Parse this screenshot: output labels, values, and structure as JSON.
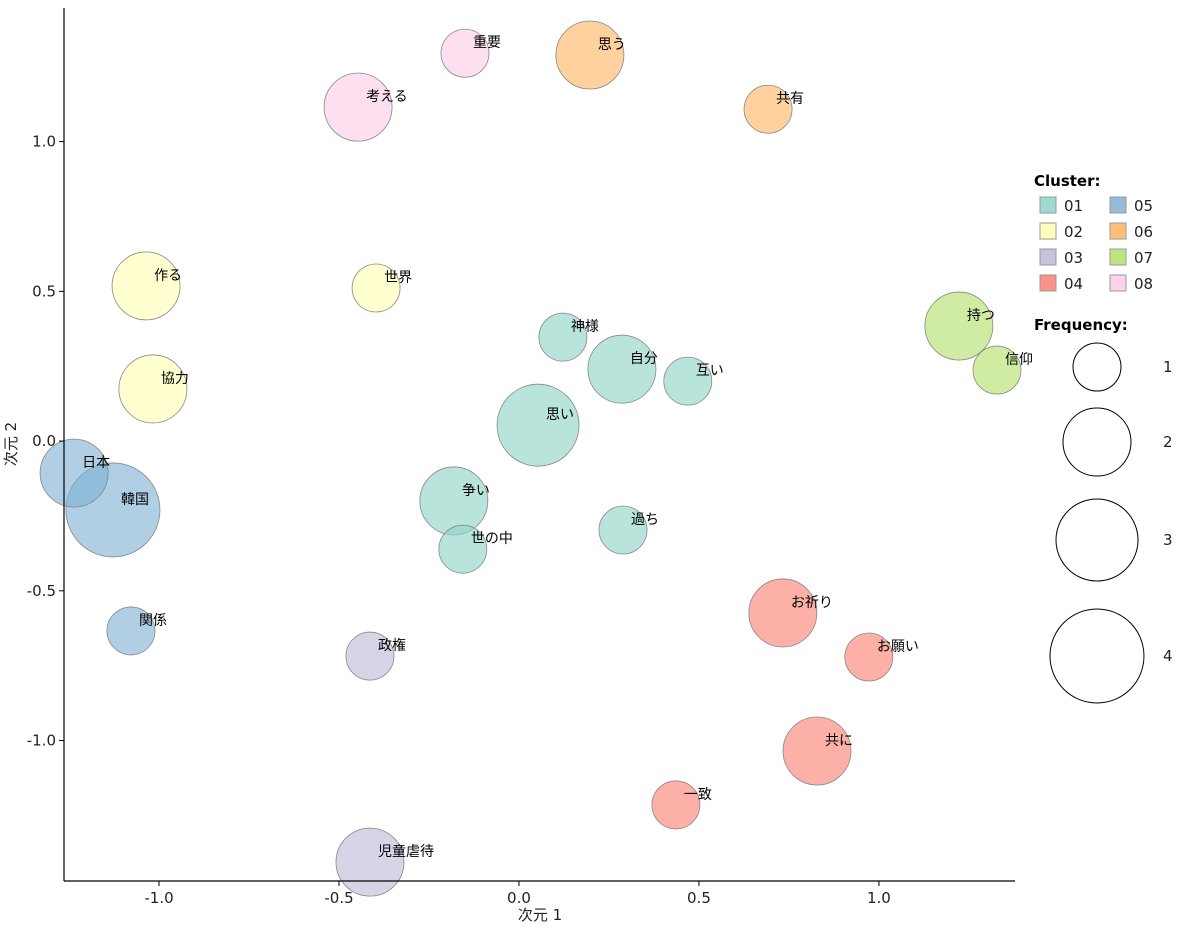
{
  "chart_data": {
    "type": "scatter",
    "subtype": "bubble",
    "xlabel": "次元 1",
    "ylabel": "次元 2",
    "xlim": [
      -1.264,
      1.378
    ],
    "ylim": [
      -1.469,
      1.446
    ],
    "xticks": [
      -1.0,
      -0.5,
      0.0,
      0.5,
      1.0
    ],
    "xtick_labels": [
      "-1.0",
      "-0.5",
      "0.0",
      "0.5",
      "1.0"
    ],
    "yticks": [
      1.0,
      0.5,
      0.0,
      -0.5,
      -1.0
    ],
    "ytick_labels": [
      "1.0",
      "0.5",
      "0.0",
      "-0.5",
      "-1.0"
    ],
    "grid": false,
    "legend": {
      "placement": "right",
      "cluster_title": "Cluster:",
      "clusters": [
        {
          "id": "01",
          "color": "#8dd3c7"
        },
        {
          "id": "02",
          "color": "#ffffb3"
        },
        {
          "id": "03",
          "color": "#bebada"
        },
        {
          "id": "04",
          "color": "#fb8072"
        },
        {
          "id": "05",
          "color": "#80b1d3"
        },
        {
          "id": "06",
          "color": "#fdb462"
        },
        {
          "id": "07",
          "color": "#b3de69"
        },
        {
          "id": "08",
          "color": "#fccde5"
        }
      ],
      "frequency_title": "Frequency:",
      "frequencies": [
        "1",
        "2",
        "3",
        "4"
      ]
    },
    "points": [
      {
        "label": "重要",
        "x": -0.15,
        "y": 1.295,
        "freq": 1,
        "cluster": "08"
      },
      {
        "label": "思う",
        "x": 0.197,
        "y": 1.289,
        "freq": 2,
        "cluster": "06"
      },
      {
        "label": "共有",
        "x": 0.692,
        "y": 1.108,
        "freq": 1,
        "cluster": "06"
      },
      {
        "label": "考える",
        "x": -0.447,
        "y": 1.115,
        "freq": 2,
        "cluster": "08"
      },
      {
        "label": "作る",
        "x": -1.036,
        "y": 0.518,
        "freq": 2,
        "cluster": "02"
      },
      {
        "label": "世界",
        "x": -0.397,
        "y": 0.511,
        "freq": 1,
        "cluster": "02"
      },
      {
        "label": "協力",
        "x": -1.017,
        "y": 0.174,
        "freq": 2,
        "cluster": "02"
      },
      {
        "label": "神様",
        "x": 0.122,
        "y": 0.347,
        "freq": 1,
        "cluster": "01"
      },
      {
        "label": "自分",
        "x": 0.286,
        "y": 0.24,
        "freq": 2,
        "cluster": "01"
      },
      {
        "label": "互い",
        "x": 0.469,
        "y": 0.2,
        "freq": 1,
        "cluster": "01"
      },
      {
        "label": "思い",
        "x": 0.053,
        "y": 0.053,
        "freq": 3,
        "cluster": "01"
      },
      {
        "label": "持つ",
        "x": 1.222,
        "y": 0.384,
        "freq": 2,
        "cluster": "07"
      },
      {
        "label": "信仰",
        "x": 1.328,
        "y": 0.237,
        "freq": 1,
        "cluster": "07"
      },
      {
        "label": "日本",
        "x": -1.236,
        "y": -0.107,
        "freq": 2,
        "cluster": "05"
      },
      {
        "label": "韓国",
        "x": -1.128,
        "y": -0.23,
        "freq": 4,
        "cluster": "05"
      },
      {
        "label": "争い",
        "x": -0.181,
        "y": -0.2,
        "freq": 2,
        "cluster": "01"
      },
      {
        "label": "世の中",
        "x": -0.156,
        "y": -0.361,
        "freq": 1,
        "cluster": "01"
      },
      {
        "label": "過ち",
        "x": 0.289,
        "y": -0.297,
        "freq": 1,
        "cluster": "01"
      },
      {
        "label": "関係",
        "x": -1.078,
        "y": -0.634,
        "freq": 1,
        "cluster": "05"
      },
      {
        "label": "政権",
        "x": -0.414,
        "y": -0.718,
        "freq": 1,
        "cluster": "03"
      },
      {
        "label": "お祈り",
        "x": 0.733,
        "y": -0.574,
        "freq": 2,
        "cluster": "04"
      },
      {
        "label": "お願い",
        "x": 0.972,
        "y": -0.721,
        "freq": 1,
        "cluster": "04"
      },
      {
        "label": "共に",
        "x": 0.828,
        "y": -1.035,
        "freq": 2,
        "cluster": "04"
      },
      {
        "label": "一致",
        "x": 0.436,
        "y": -1.215,
        "freq": 1,
        "cluster": "04"
      },
      {
        "label": "児童虐待",
        "x": -0.414,
        "y": -1.406,
        "freq": 2,
        "cluster": "03"
      }
    ]
  }
}
